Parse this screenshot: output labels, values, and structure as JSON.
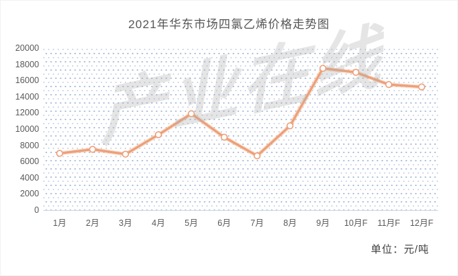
{
  "title": "2021年华东市场四氯乙烯价格走势图",
  "unit_label": "单位：元/吨",
  "watermark_text": "产业在线",
  "colors": {
    "line": "#ED9F78",
    "line_halo": "#F7CBAF",
    "marker_fill": "#FFFFFF",
    "marker_ring": "#ED9F78",
    "grid_dot": "#7A98C1",
    "axis_line": "#C9D4E0",
    "title_text": "#555555",
    "axis_text": "#595959",
    "unit_text": "#3D3D3D",
    "watermark": "#B0B0B0",
    "background": "#FFFFFF"
  },
  "chart_data": {
    "type": "line",
    "title": "2021年华东市场四氯乙烯价格走势图",
    "categories": [
      "1月",
      "2月",
      "3月",
      "4月",
      "5月",
      "6月",
      "7月",
      "8月",
      "9月",
      "10月F",
      "11月F",
      "12月F"
    ],
    "series": [
      {
        "name": "华东市场四氯乙烯价格",
        "values": [
          7000,
          7500,
          6900,
          9300,
          11900,
          9000,
          6700,
          10400,
          17500,
          17000,
          15500,
          15200
        ]
      }
    ],
    "xlabel": "",
    "ylabel": "元/吨",
    "ylim": [
      0,
      20000
    ],
    "ytick_step": 2000,
    "yticks": [
      0,
      2000,
      4000,
      6000,
      8000,
      10000,
      12000,
      14000,
      16000,
      18000,
      20000
    ],
    "grid": "dot-pattern-fill",
    "legend_position": "none",
    "marker": "open-circle"
  }
}
